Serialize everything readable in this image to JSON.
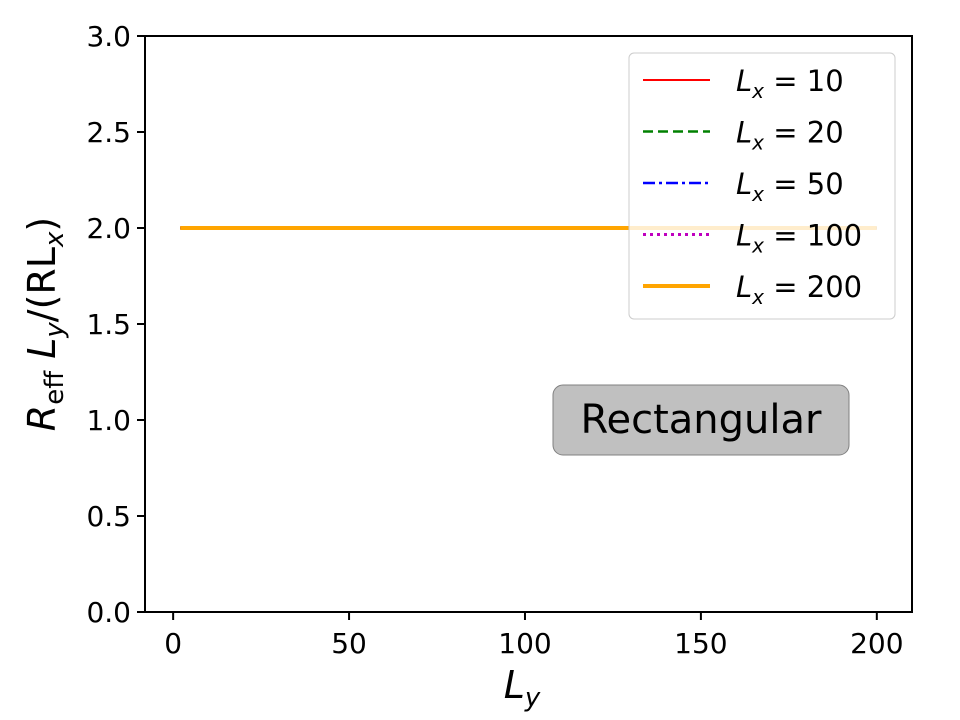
{
  "chart_data": {
    "type": "line",
    "xlabel": "L_y",
    "ylabel": "R_eff L_y/(R L_x)",
    "xlim": [
      -8,
      210
    ],
    "ylim": [
      0,
      3
    ],
    "xticks": [
      0,
      50,
      100,
      150,
      200
    ],
    "xtick_labels": [
      "0",
      "50",
      "100",
      "150",
      "200"
    ],
    "yticks": [
      0,
      0.5,
      1,
      1.5,
      2,
      2.5,
      3
    ],
    "ytick_labels": [
      "0.0",
      "0.5",
      "1.0",
      "1.5",
      "2.0",
      "2.5",
      "3.0"
    ],
    "grid": false,
    "legend_position": "top-right",
    "annotation": "Rectangular",
    "series": [
      {
        "name": "L_x = 10",
        "legend_main": "L",
        "legend_sub": "x",
        "legend_rest": " = 10",
        "color": "#ff0000",
        "dash": "solid",
        "x": [
          2,
          200
        ],
        "y": [
          2.0,
          2.0
        ]
      },
      {
        "name": "L_x = 20",
        "legend_main": "L",
        "legend_sub": "x",
        "legend_rest": " = 20",
        "color": "#008000",
        "dash": "dashed",
        "x": [
          2,
          200
        ],
        "y": [
          2.0,
          2.0
        ]
      },
      {
        "name": "L_x = 50",
        "legend_main": "L",
        "legend_sub": "x",
        "legend_rest": " = 50",
        "color": "#0000ff",
        "dash": "dashdot",
        "x": [
          2,
          200
        ],
        "y": [
          2.0,
          2.0
        ]
      },
      {
        "name": "L_x = 100",
        "legend_main": "L",
        "legend_sub": "x",
        "legend_rest": " = 100",
        "color": "#bf00bf",
        "dash": "dotted",
        "x": [
          2,
          200
        ],
        "y": [
          2.0,
          2.0
        ]
      },
      {
        "name": "L_x = 200",
        "legend_main": "L",
        "legend_sub": "x",
        "legend_rest": " = 200",
        "color": "#ffa500",
        "dash": "solid",
        "x": [
          2,
          200
        ],
        "y": [
          2.0,
          2.0
        ]
      }
    ]
  },
  "labels": {
    "y_main": "R",
    "y_sub": "eff",
    "y_rest_1": " L",
    "y_sub2": "y",
    "y_rest_2": "/(RL",
    "y_sub3": "x",
    "y_rest_3": ")",
    "x_main": "L",
    "x_sub": "y"
  }
}
